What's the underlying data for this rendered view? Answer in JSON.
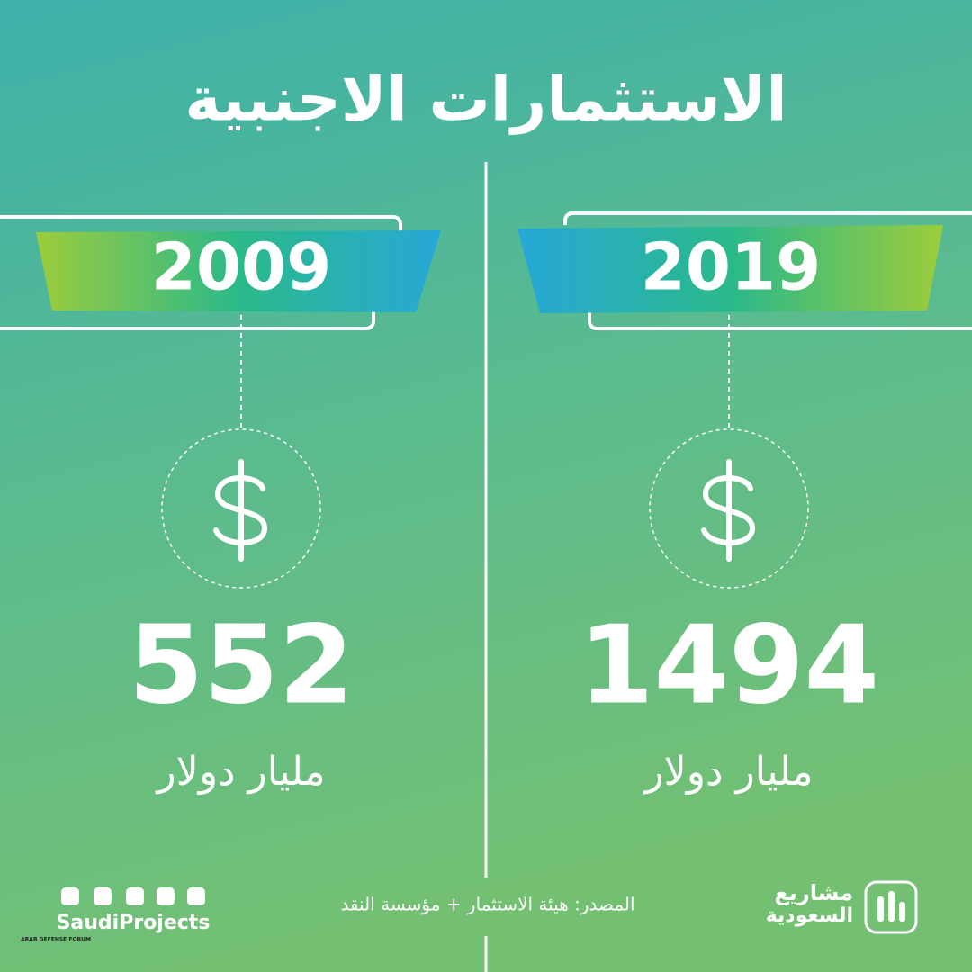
{
  "title": "الاستثمارات الاجنبية",
  "panels": [
    {
      "year": 2019,
      "value": 1494,
      "unit": "مليار دولار"
    },
    {
      "year": 2009,
      "value": 552,
      "unit": "مليار دولار"
    }
  ],
  "footer": {
    "source": "المصدر: هيئة الاستثمار + مؤسسة النقد",
    "brand": [
      "مشاريع",
      "السعودية"
    ],
    "handle": "SaudiProjects",
    "watermark": "ARAB DEFENSE FORUM"
  }
}
